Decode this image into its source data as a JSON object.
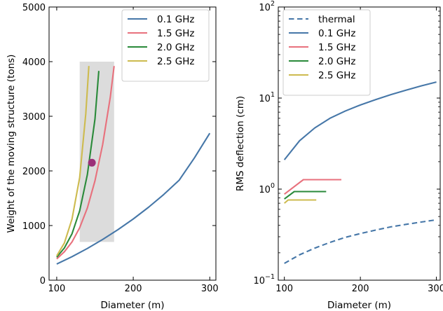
{
  "chart_data": [
    {
      "type": "line",
      "xlabel": "Diameter (m)",
      "ylabel": "Weight of the moving structure (tons)",
      "xlim": [
        90,
        308
      ],
      "ylim": [
        0,
        5000
      ],
      "xticks": [
        "100",
        "200",
        "300"
      ],
      "yticks": [
        "0",
        "1000",
        "2000",
        "3000",
        "4000",
        "5000"
      ],
      "legend_position": "top-right",
      "shaded_region": {
        "x": [
          130,
          175
        ],
        "y": [
          700,
          4000
        ],
        "color": "#dcdcdc"
      },
      "marker": {
        "x": 146,
        "y": 2150,
        "color": "#9b2f78"
      },
      "series": [
        {
          "name": "0.1 GHz",
          "color": "#4677a8",
          "dash": "solid",
          "x": [
            100,
            120,
            140,
            160,
            180,
            200,
            220,
            240,
            260,
            280,
            300
          ],
          "y": [
            295,
            430,
            580,
            745,
            925,
            1120,
            1335,
            1570,
            1830,
            2240,
            2690
          ]
        },
        {
          "name": "1.5 GHz",
          "color": "#e8717d",
          "dash": "solid",
          "x": [
            100,
            110,
            120,
            130,
            140,
            150,
            160,
            170,
            175
          ],
          "y": [
            390,
            520,
            700,
            960,
            1320,
            1820,
            2480,
            3350,
            3920
          ]
        },
        {
          "name": "2.0 GHz",
          "color": "#2a8a3a",
          "dash": "solid",
          "x": [
            100,
            110,
            120,
            130,
            140,
            150,
            155
          ],
          "y": [
            420,
            590,
            850,
            1270,
            1930,
            2950,
            3830
          ]
        },
        {
          "name": "2.5 GHz",
          "color": "#cdbb4f",
          "dash": "solid",
          "x": [
            100,
            110,
            120,
            130,
            138,
            142
          ],
          "y": [
            445,
            680,
            1120,
            1880,
            3050,
            3920
          ]
        }
      ]
    },
    {
      "type": "line",
      "xlabel": "Diameter (m)",
      "ylabel": "RMS deflection (cm)",
      "scale_y": "log",
      "xlim": [
        92,
        305
      ],
      "ylim": [
        0.1,
        100
      ],
      "xticks": [
        "100",
        "200",
        "300"
      ],
      "yticks": [
        {
          "base": "10",
          "exp": "−1"
        },
        {
          "base": "10",
          "exp": "0"
        },
        {
          "base": "10",
          "exp": "1"
        },
        {
          "base": "10",
          "exp": "2"
        }
      ],
      "legend_position": "top-left",
      "series": [
        {
          "name": "thermal",
          "color": "#4677a8",
          "dash": "dashed",
          "x": [
            100,
            120,
            140,
            160,
            180,
            200,
            220,
            240,
            260,
            280,
            300
          ],
          "y": [
            0.153,
            0.19,
            0.225,
            0.26,
            0.295,
            0.325,
            0.355,
            0.385,
            0.41,
            0.435,
            0.46
          ]
        },
        {
          "name": "0.1 GHz",
          "color": "#4677a8",
          "dash": "solid",
          "x": [
            100,
            120,
            140,
            160,
            180,
            200,
            220,
            240,
            260,
            280,
            300
          ],
          "y": [
            2.1,
            3.4,
            4.7,
            6.0,
            7.2,
            8.4,
            9.6,
            10.9,
            12.2,
            13.6,
            15.0
          ]
        },
        {
          "name": "1.5 GHz",
          "color": "#e8717d",
          "dash": "solid",
          "x": [
            100,
            125,
            150,
            175
          ],
          "y": [
            0.88,
            1.27,
            1.27,
            1.27
          ]
        },
        {
          "name": "2.0 GHz",
          "color": "#2a8a3a",
          "dash": "solid",
          "x": [
            100,
            113,
            135,
            155
          ],
          "y": [
            0.78,
            0.94,
            0.94,
            0.94
          ]
        },
        {
          "name": "2.5 GHz",
          "color": "#cdbb4f",
          "dash": "solid",
          "x": [
            100,
            105,
            125,
            142
          ],
          "y": [
            0.7,
            0.76,
            0.76,
            0.76
          ]
        }
      ]
    }
  ]
}
